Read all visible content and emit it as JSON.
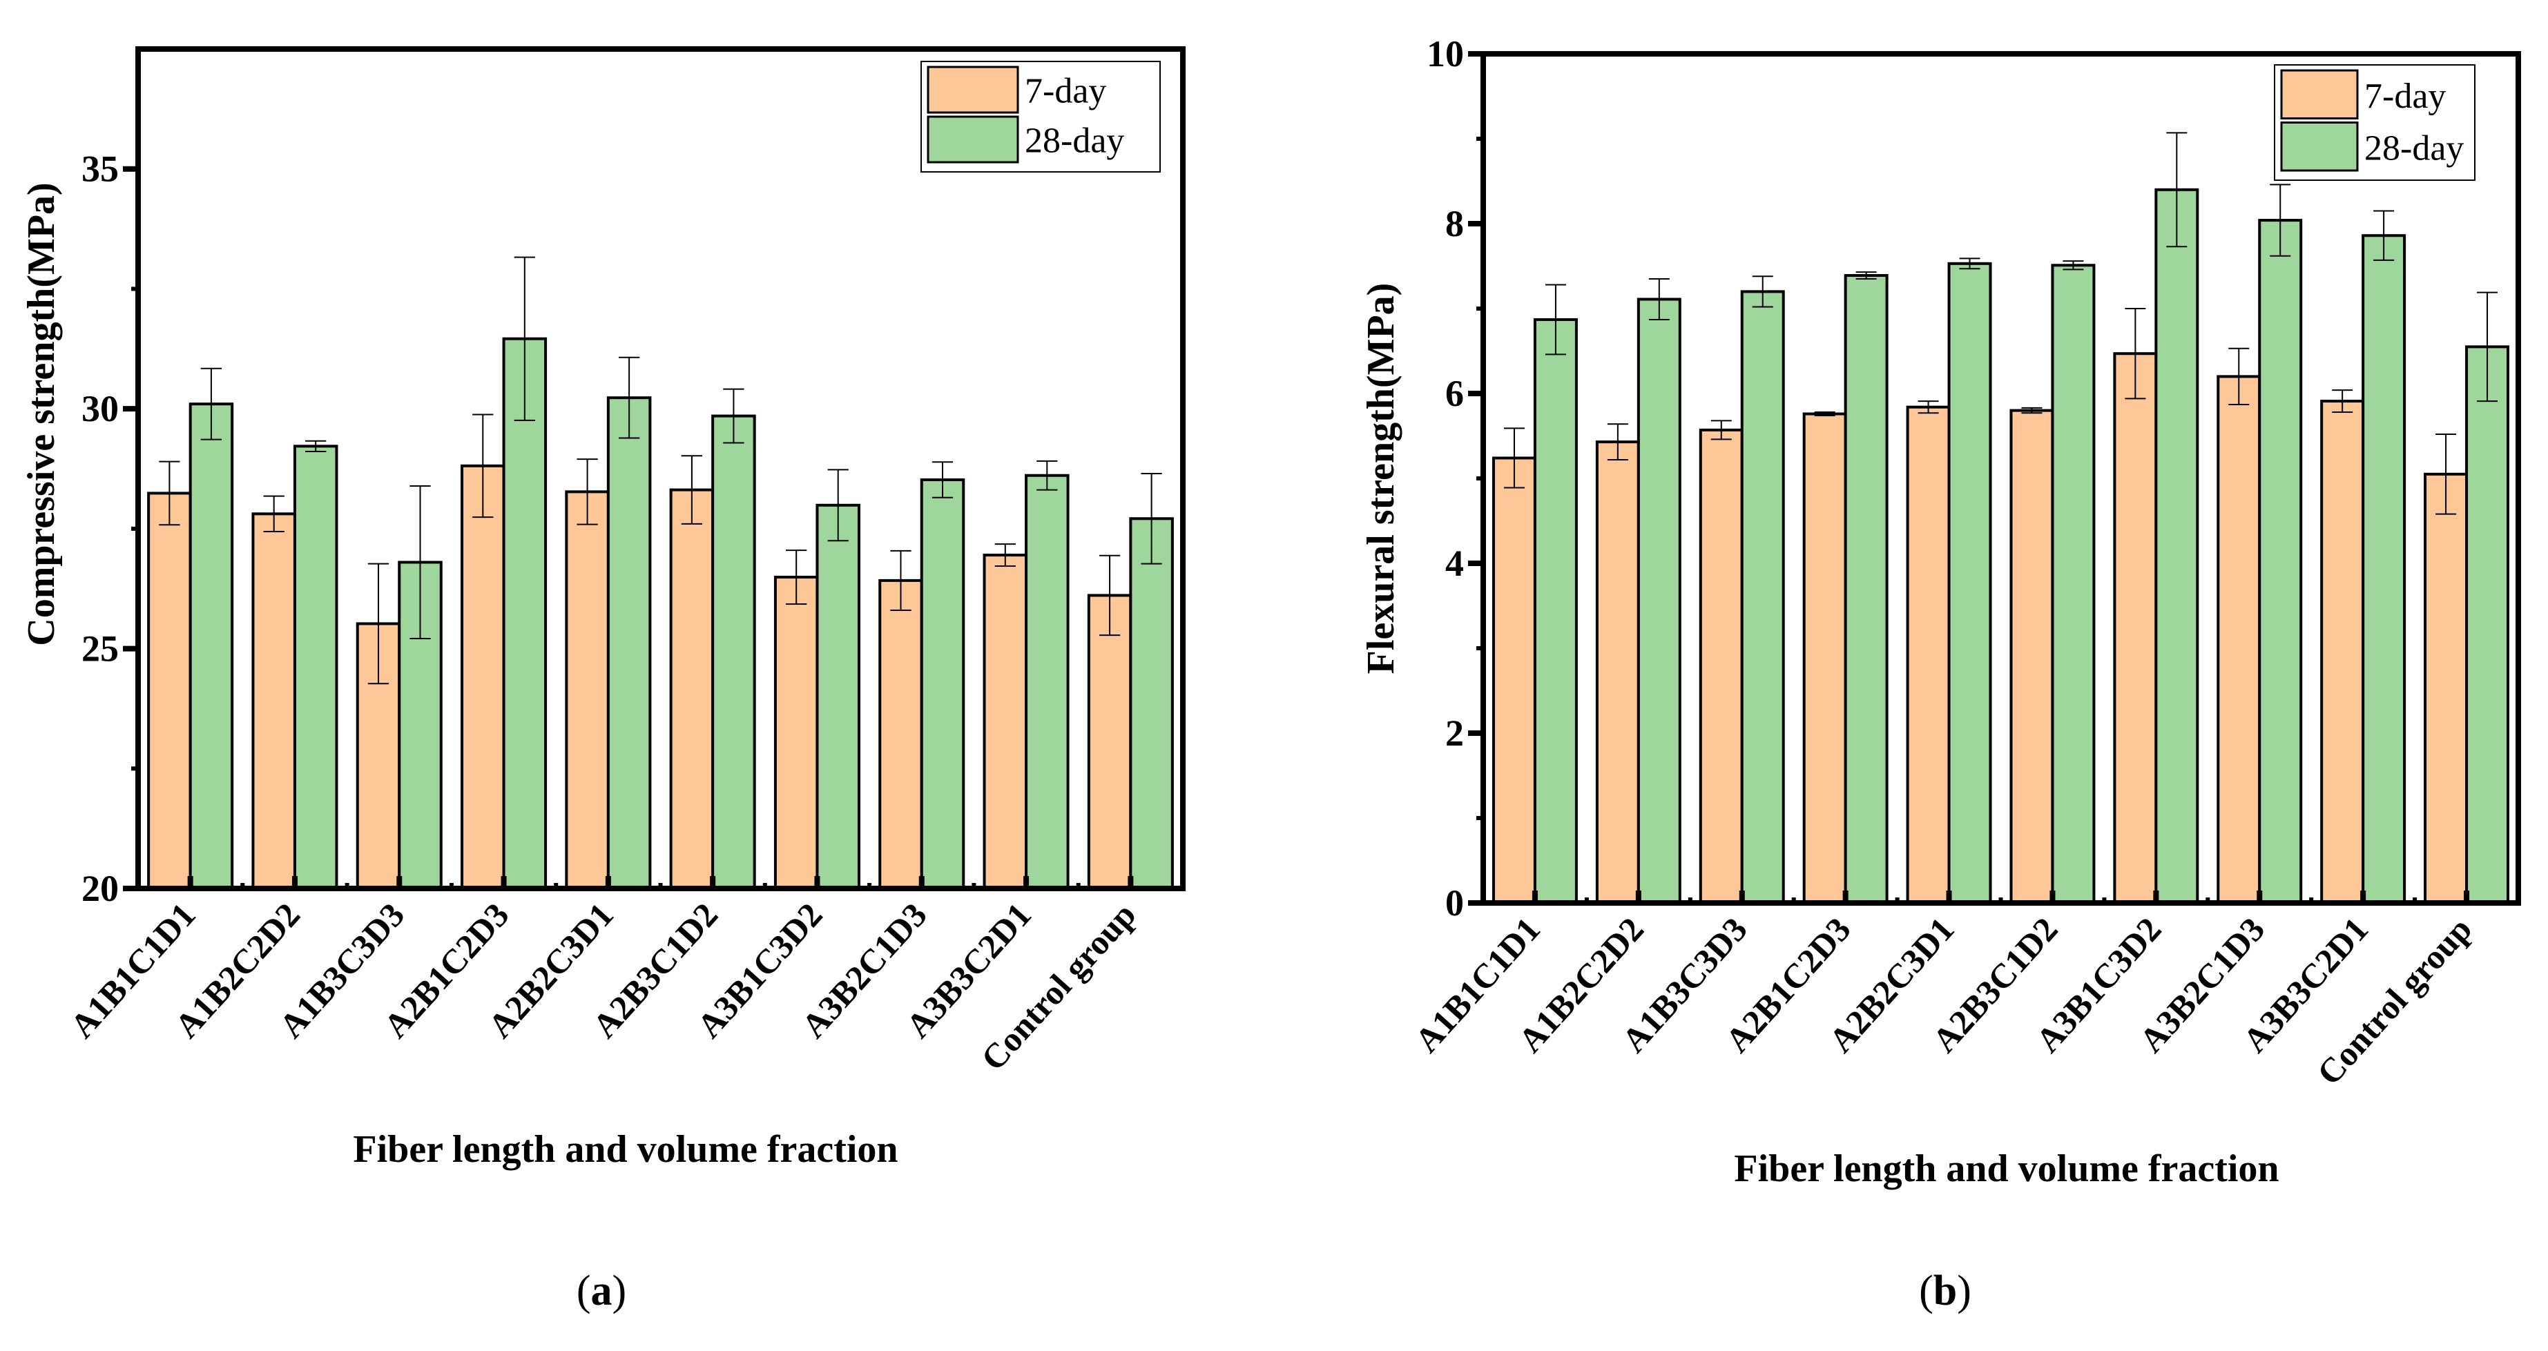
{
  "colors": {
    "day7": "#FDC797",
    "day28": "#9ED69B",
    "axis": "#000000"
  },
  "chart_data": [
    {
      "type": "bar",
      "panel_label": "a",
      "title": "",
      "xlabel": "Fiber length and volume fraction",
      "ylabel": "Compressive strength(MPa)",
      "ylim": [
        20,
        37.5
      ],
      "yticks": [
        20,
        25,
        30,
        35
      ],
      "legend": [
        "7-day",
        "28-day"
      ],
      "legend_position": "top-right",
      "categories": [
        "A1B1C1D1",
        "A1B2C2D2",
        "A1B3C3D3",
        "A2B1C2D3",
        "A2B2C3D1",
        "A2B3C1D2",
        "A3B1C3D2",
        "A3B2C1D3",
        "A3B3C2D1",
        "Control group"
      ],
      "series": [
        {
          "name": "7-day",
          "values": [
            28.24,
            27.81,
            25.52,
            28.81,
            28.27,
            28.31,
            26.49,
            26.42,
            26.95,
            26.11
          ],
          "errors": [
            0.66,
            0.37,
            1.25,
            1.07,
            0.68,
            0.71,
            0.56,
            0.62,
            0.23,
            0.83
          ]
        },
        {
          "name": "28-day",
          "values": [
            30.1,
            29.22,
            26.8,
            31.46,
            30.23,
            29.85,
            27.99,
            28.52,
            28.61,
            27.71
          ],
          "errors": [
            0.74,
            0.11,
            1.59,
            1.7,
            0.84,
            0.56,
            0.74,
            0.37,
            0.3,
            0.94
          ]
        }
      ]
    },
    {
      "type": "bar",
      "panel_label": "b",
      "title": "",
      "xlabel": "Fiber length and volume fraction",
      "ylabel": "Flexural strength(MPa)",
      "ylim": [
        0,
        10
      ],
      "yticks": [
        0,
        2,
        4,
        6,
        8,
        10
      ],
      "legend": [
        "7-day",
        "28-day"
      ],
      "legend_position": "top-right",
      "categories": [
        "A1B1C1D1",
        "A1B2C2D2",
        "A1B3C3D3",
        "A2B1C2D3",
        "A2B2C3D1",
        "A2B3C1D2",
        "A3B1C3D2",
        "A3B2C1D3",
        "A3B3C2D1",
        "Control group"
      ],
      "series": [
        {
          "name": "7-day",
          "values": [
            5.24,
            5.43,
            5.57,
            5.76,
            5.84,
            5.8,
            6.47,
            6.2,
            5.91,
            5.05
          ],
          "errors": [
            0.35,
            0.21,
            0.11,
            0.02,
            0.07,
            0.03,
            0.53,
            0.33,
            0.13,
            0.47
          ]
        },
        {
          "name": "28-day",
          "values": [
            6.87,
            7.11,
            7.2,
            7.39,
            7.53,
            7.51,
            8.4,
            8.04,
            7.86,
            6.55
          ],
          "errors": [
            0.41,
            0.24,
            0.18,
            0.04,
            0.06,
            0.05,
            0.67,
            0.42,
            0.29,
            0.64
          ]
        }
      ]
    }
  ]
}
